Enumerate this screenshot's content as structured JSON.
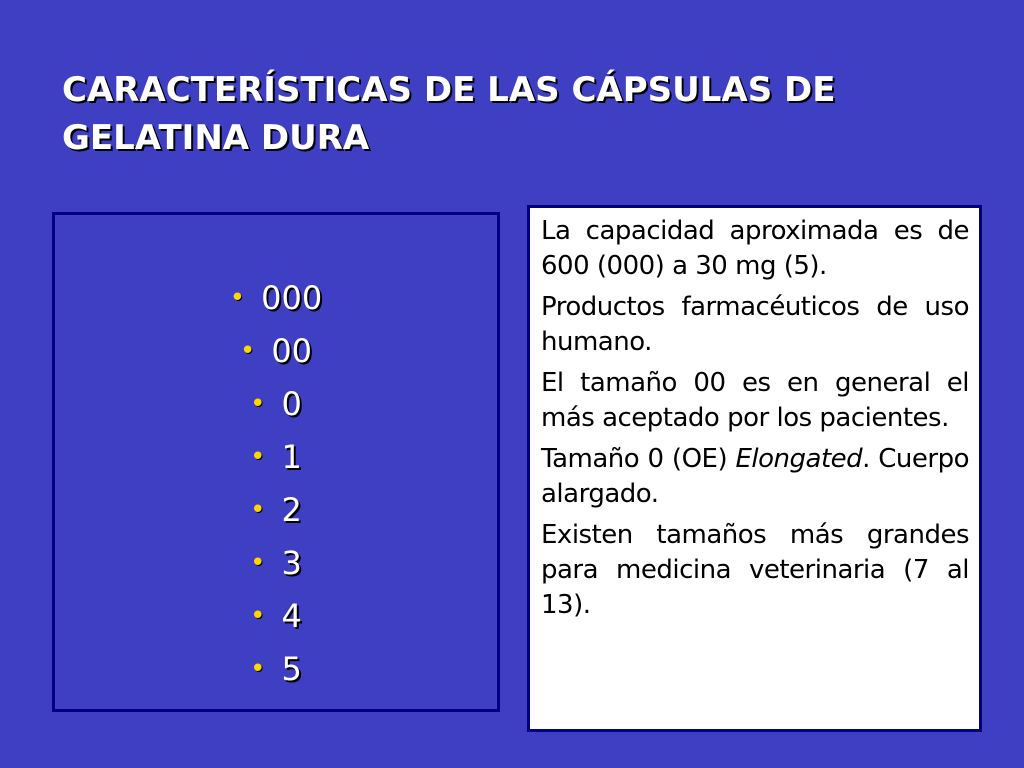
{
  "slide": {
    "title": "CARACTERÍSTICAS DE LAS CÁPSULAS DE GELATINA DURA",
    "colors": {
      "background": "#3f3fc3",
      "bullet": "#ffd700",
      "border": "#000080"
    }
  },
  "sizes": [
    "000",
    "00",
    "0",
    "1",
    "2",
    "3",
    "4",
    "5"
  ],
  "notes": {
    "p1": "La capacidad aproximada es de 600 (000) a 30 mg (5).",
    "p2": "Productos farmacéuticos de uso humano.",
    "p3": "El tamaño 00 es en general el más aceptado por los pacientes.",
    "p4_a": "Tamaño 0 (OE) ",
    "p4_italic": "Elongated",
    "p4_b": ". Cuerpo alargado.",
    "p5": "Existen tamaños más grandes para medicina veterinaria (7 al 13)."
  }
}
